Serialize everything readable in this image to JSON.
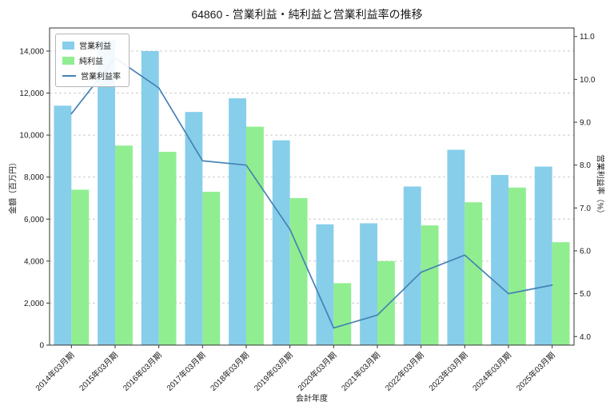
{
  "chart_data": {
    "type": "bar+line",
    "title": "64860 - 営業利益・純利益と営業利益率の推移",
    "xlabel": "会計年度",
    "ylabel_left": "金額（百万円）",
    "ylabel_right": "営業利益率（%）",
    "categories": [
      "2014年03月期",
      "2015年03月期",
      "2016年03月期",
      "2017年03月期",
      "2018年03月期",
      "2019年03月期",
      "2020年03月期",
      "2021年03月期",
      "2022年03月期",
      "2023年03月期",
      "2024年03月期",
      "2025年03月期"
    ],
    "series": [
      {
        "key": "operating-profit",
        "name": "営業利益",
        "type": "bar",
        "color": "#87ceeb",
        "axis": "left",
        "values": [
          11400,
          14500,
          14000,
          11100,
          11750,
          9750,
          5750,
          5800,
          7550,
          9300,
          8100,
          8500
        ]
      },
      {
        "key": "net-profit",
        "name": "純利益",
        "type": "bar",
        "color": "#90ee90",
        "axis": "left",
        "values": [
          7400,
          9500,
          9200,
          7300,
          10400,
          7000,
          2950,
          4000,
          5700,
          6800,
          7500,
          4900
        ]
      },
      {
        "key": "operating-margin",
        "name": "営業利益率",
        "type": "line",
        "color": "#4682b4",
        "axis": "right",
        "values": [
          9.2,
          10.5,
          9.8,
          8.1,
          8.0,
          6.5,
          4.2,
          4.5,
          5.5,
          5.9,
          5.0,
          5.2
        ]
      }
    ],
    "ylim_left": [
      0,
      15100
    ],
    "yticks_left": [
      0,
      2000,
      4000,
      6000,
      8000,
      10000,
      12000,
      14000
    ],
    "ylim_right": [
      3.8,
      11.2
    ],
    "yticks_right": [
      4,
      5,
      6,
      7,
      8,
      9,
      10,
      11
    ],
    "grid": "horizontal-dashed",
    "legend_position": "upper-left",
    "colors": {
      "bar_operating_profit": "#87ceeb",
      "bar_net_profit": "#90ee90",
      "margin_line": "#4682b4",
      "grid": "#cccccc",
      "spine": "#333333",
      "text": "#1a1a1a"
    }
  }
}
